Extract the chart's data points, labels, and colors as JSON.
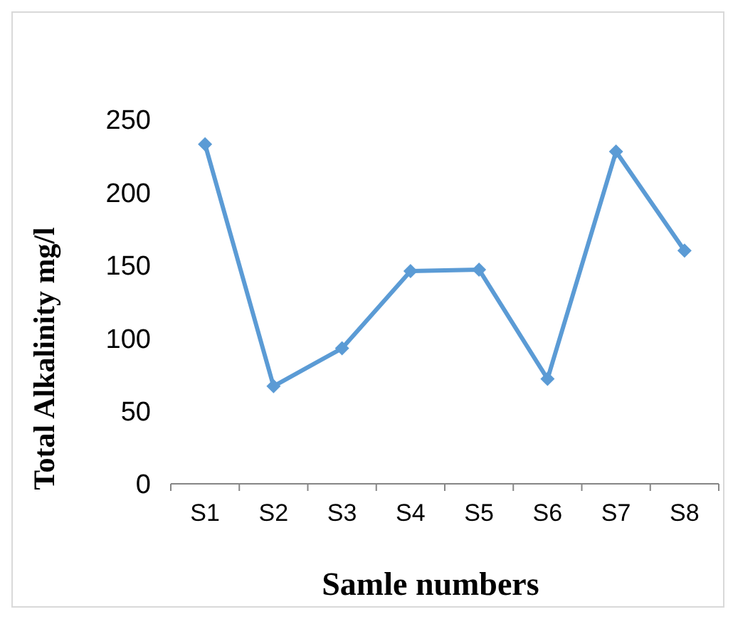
{
  "chart_data": {
    "type": "line",
    "xlabel": "Samle numbers",
    "ylabel": "Total Alkalinity mg/l",
    "categories": [
      "S1",
      "S2",
      "S3",
      "S4",
      "S5",
      "S6",
      "S7",
      "S8"
    ],
    "series": [
      {
        "color": "#5b9bd5",
        "values": [
          233,
          67,
          93,
          146,
          147,
          72,
          228,
          160
        ]
      }
    ],
    "ylim": [
      0,
      250
    ],
    "yticks": [
      0,
      50,
      100,
      150,
      200,
      250
    ],
    "grid": false,
    "marker": "diamond",
    "line_style": "solid"
  }
}
